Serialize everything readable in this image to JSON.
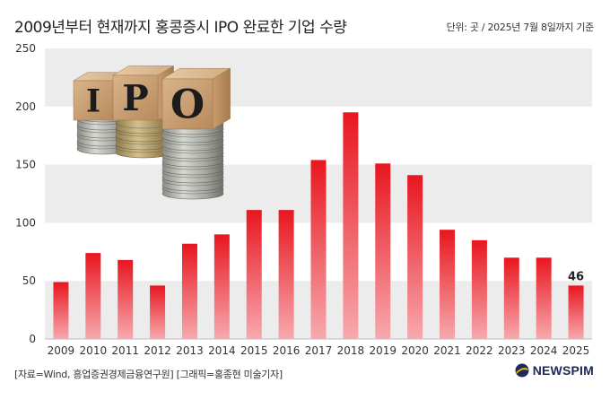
{
  "header": {
    "title": "2009년부터 현재까지 홍콩증시 IPO 완료한 기업 수량",
    "unit": "단위: 곳 / 2025년 7월 8일까지 기준"
  },
  "footer": {
    "source": "[자료=Wind, 흥업증권경제금융연구원] [그래픽=홍종현 미술기자]",
    "logo_text": "NEWSPIM"
  },
  "illustration": {
    "letters": [
      "I",
      "P",
      "O"
    ]
  },
  "colors": {
    "bar_top": "#e8161f",
    "bar_bottom": "#f7a9ae",
    "band": "#ececec",
    "logo_accent": "#f5b800",
    "logo_text": "#1b2a5c"
  },
  "chart_data": {
    "type": "bar",
    "categories": [
      "2009",
      "2010",
      "2011",
      "2012",
      "2013",
      "2014",
      "2015",
      "2016",
      "2017",
      "2018",
      "2019",
      "2020",
      "2021",
      "2022",
      "2023",
      "2024",
      "2025"
    ],
    "values": [
      49,
      74,
      68,
      46,
      82,
      90,
      111,
      111,
      154,
      195,
      151,
      141,
      94,
      85,
      70,
      70,
      46
    ],
    "data_labels": [
      {
        "category": "2025",
        "text": "46"
      }
    ],
    "y_ticks": [
      "0",
      "50",
      "100",
      "150",
      "200",
      "250"
    ],
    "ylim": [
      0,
      250
    ],
    "xlabel": "",
    "ylabel": "",
    "grid": "alternating horizontal bands"
  }
}
